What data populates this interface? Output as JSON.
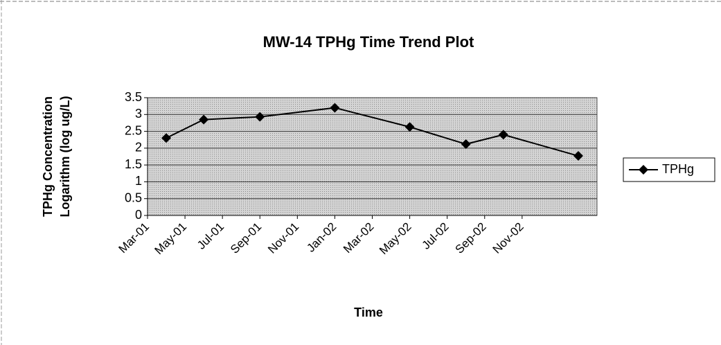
{
  "chart_data": {
    "type": "line",
    "title": "MW-14 TPHg Time Trend Plot",
    "x_label": "Time",
    "y_label": [
      "TPHg Concentration",
      "Logarithm (log ug/L)"
    ],
    "x": [
      "Apr-01",
      "Jun-01",
      "Sep-01",
      "Jan-02",
      "May-02",
      "Aug-02",
      "Oct-02",
      "Feb-03"
    ],
    "series": [
      {
        "name": "TPHg",
        "color": "#000000",
        "values": [
          2.3,
          2.85,
          2.93,
          3.2,
          2.63,
          2.12,
          2.4,
          1.77
        ]
      }
    ],
    "xlim": [
      "Mar-01",
      "Mar-03"
    ],
    "xticks": [
      "Mar-01",
      "May-01",
      "Jul-01",
      "Sep-01",
      "Nov-01",
      "Jan-02",
      "Mar-02",
      "May-02",
      "Jul-02",
      "Sep-02",
      "Nov-02"
    ],
    "ylim": [
      0,
      3.5
    ],
    "yticks": [
      0,
      0.5,
      1,
      1.5,
      2,
      2.5,
      3,
      3.5
    ],
    "grid": true,
    "legend": "right"
  }
}
